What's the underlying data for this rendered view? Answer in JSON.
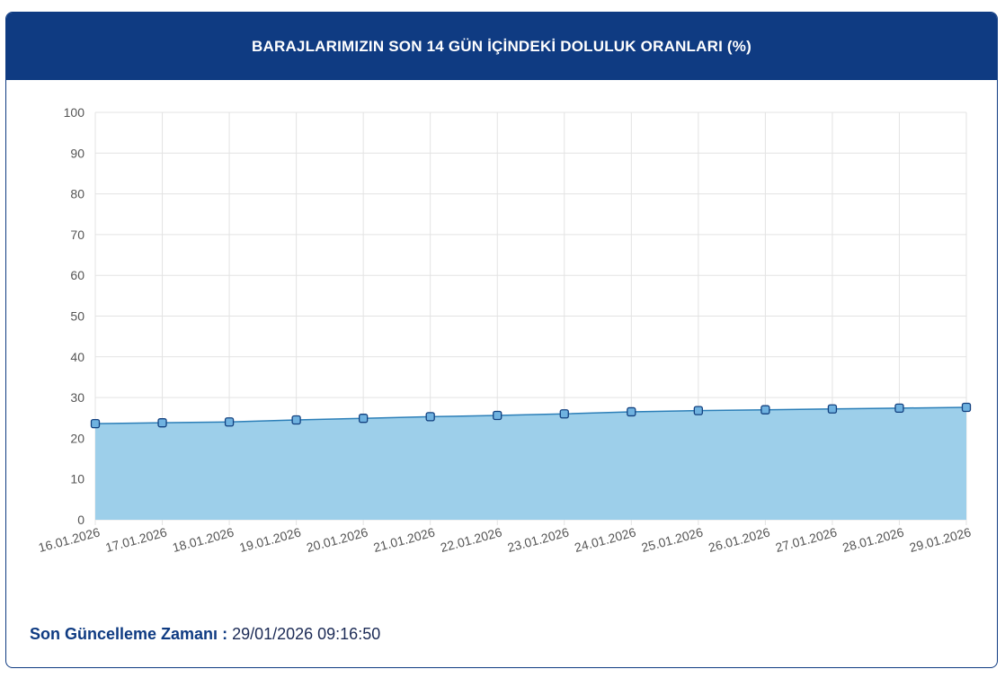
{
  "header": {
    "title": "BARAJLARIMIZIN SON 14 GÜN İÇİNDEKİ DOLULUK ORANLARI (%)"
  },
  "footer": {
    "label": "Son Güncelleme Zamanı",
    "separator": " : ",
    "value": "29/01/2026 09:16:50"
  },
  "colors": {
    "header_bg": "#0f3b82",
    "area_fill": "#9dcfea",
    "line": "#2c7fb8",
    "marker_fill": "#6fb2e0",
    "marker_stroke": "#12407f",
    "grid": "#e3e3e3"
  },
  "chart_data": {
    "type": "area",
    "x": [
      "16.01.2026",
      "17.01.2026",
      "18.01.2026",
      "19.01.2026",
      "20.01.2026",
      "21.01.2026",
      "22.01.2026",
      "23.01.2026",
      "24.01.2026",
      "25.01.2026",
      "26.01.2026",
      "27.01.2026",
      "28.01.2026",
      "29.01.2026"
    ],
    "series": [
      {
        "values": [
          23.6,
          23.8,
          24.0,
          24.5,
          24.9,
          25.3,
          25.6,
          26.0,
          26.5,
          26.8,
          27.0,
          27.2,
          27.4,
          27.6
        ]
      }
    ],
    "ylim": [
      0,
      100
    ],
    "yticks": [
      0,
      10,
      20,
      30,
      40,
      50,
      60,
      70,
      80,
      90,
      100
    ],
    "grid": true,
    "legend": "none",
    "x_tick_rotation": "rotated"
  }
}
